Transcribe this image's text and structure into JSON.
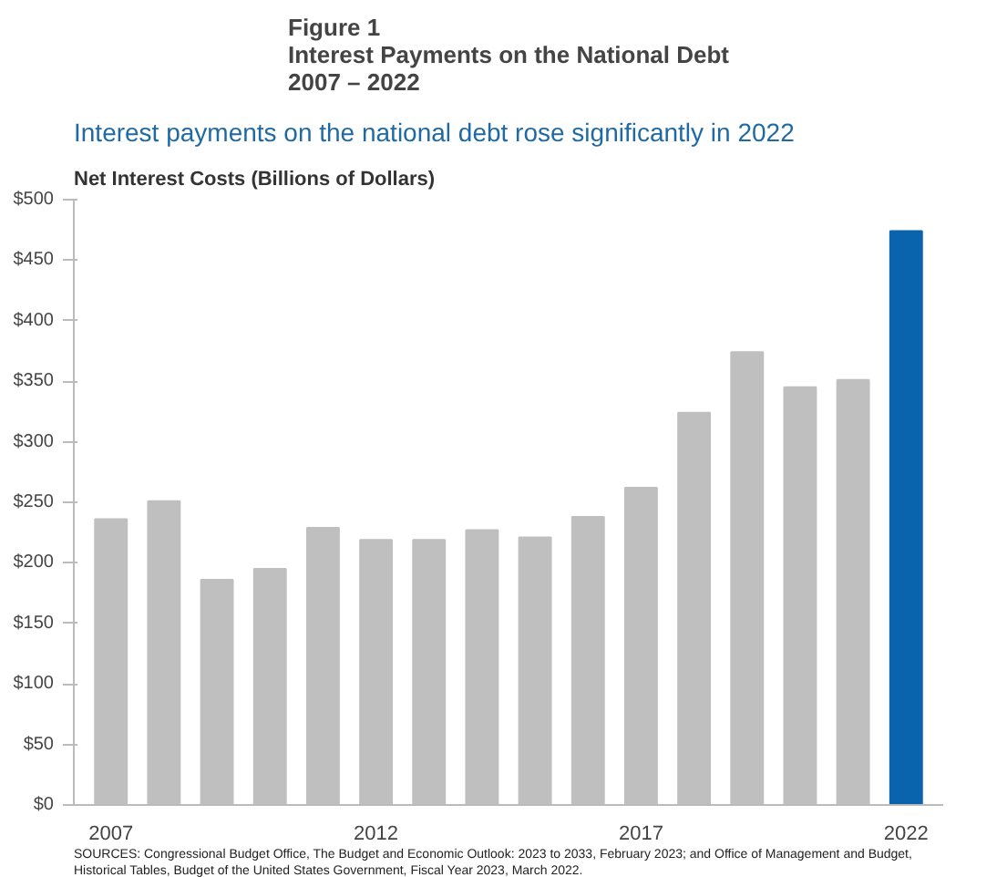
{
  "chart_data": {
    "type": "bar",
    "title": "Figure 1\nInterest Payments on the National Debt\n2007 – 2022",
    "subtitle": "Interest payments on the national debt rose significantly in 2022",
    "ylabel": "Net Interest Costs (Billions of Dollars)",
    "categories": [
      "2007",
      null,
      null,
      null,
      null,
      "2012",
      null,
      null,
      null,
      null,
      "2017",
      null,
      null,
      null,
      null,
      "2022"
    ],
    "values": [
      236,
      251,
      186,
      195,
      229,
      219,
      219,
      227,
      221,
      238,
      262,
      324,
      374,
      345,
      351,
      474
    ],
    "colors": [
      "#bfbfbf",
      "#bfbfbf",
      "#bfbfbf",
      "#bfbfbf",
      "#bfbfbf",
      "#bfbfbf",
      "#bfbfbf",
      "#bfbfbf",
      "#bfbfbf",
      "#bfbfbf",
      "#bfbfbf",
      "#bfbfbf",
      "#bfbfbf",
      "#bfbfbf",
      "#bfbfbf",
      "#0a64ad"
    ],
    "ylim": [
      0,
      500
    ],
    "yticks": [
      {
        "value": 0,
        "label": "$0"
      },
      {
        "value": 50,
        "label": "$50"
      },
      {
        "value": 100,
        "label": "$100"
      },
      {
        "value": 150,
        "label": "$150"
      },
      {
        "value": 200,
        "label": "$200"
      },
      {
        "value": 250,
        "label": "$250"
      },
      {
        "value": 300,
        "label": "$300"
      },
      {
        "value": 350,
        "label": "$350"
      },
      {
        "value": 400,
        "label": "$400"
      },
      {
        "value": 450,
        "label": "$450"
      },
      {
        "value": 500,
        "label": "$500"
      }
    ],
    "grid": false,
    "annotations": [
      "SOURCES: Congressional Budget Office, The Budget and Economic Outlook: 2023 to 2033, February 2023; and Office of Management and Budget,",
      "Historical Tables, Budget of the United States Government, Fiscal Year 2023, March 2022."
    ]
  }
}
